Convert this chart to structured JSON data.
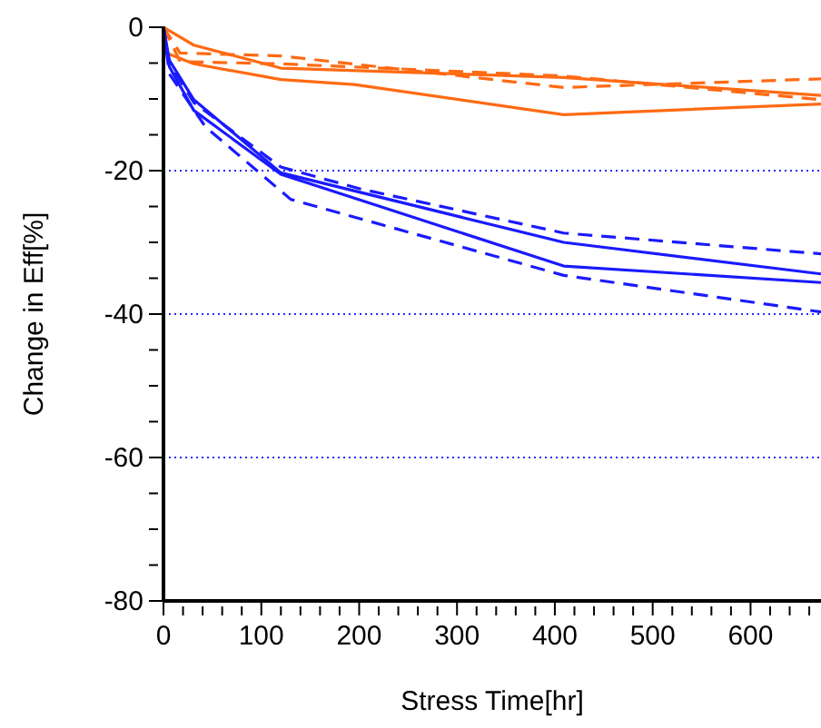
{
  "chart_data": {
    "type": "line",
    "xlabel": "Stress Time[hr]",
    "ylabel": "Change in Eff[%]",
    "xlim": [
      0,
      672
    ],
    "ylim": [
      -80,
      0
    ],
    "xticks": [
      0,
      {
        "value": 20,
        "label": null
      },
      {
        "value": 40,
        "label": null
      },
      {
        "value": 60,
        "label": null
      },
      {
        "value": 80,
        "label": null
      },
      100,
      {
        "value": 120,
        "label": null
      },
      {
        "value": 140,
        "label": null
      },
      {
        "value": 160,
        "label": null
      },
      {
        "value": 180,
        "label": null
      },
      200,
      {
        "value": 220,
        "label": null
      },
      {
        "value": 240,
        "label": null
      },
      {
        "value": 260,
        "label": null
      },
      {
        "value": 280,
        "label": null
      },
      300,
      {
        "value": 320,
        "label": null
      },
      {
        "value": 340,
        "label": null
      },
      {
        "value": 360,
        "label": null
      },
      {
        "value": 380,
        "label": null
      },
      400,
      {
        "value": 420,
        "label": null
      },
      {
        "value": 440,
        "label": null
      },
      {
        "value": 460,
        "label": null
      },
      {
        "value": 480,
        "label": null
      },
      500,
      {
        "value": 520,
        "label": null
      },
      {
        "value": 540,
        "label": null
      },
      {
        "value": 560,
        "label": null
      },
      {
        "value": 580,
        "label": null
      },
      600,
      {
        "value": 620,
        "label": null
      },
      {
        "value": 640,
        "label": null
      },
      {
        "value": 660,
        "label": null
      }
    ],
    "yticks": [
      -80,
      {
        "value": -75,
        "label": null
      },
      {
        "value": -70,
        "label": null
      },
      {
        "value": -65,
        "label": null
      },
      -60,
      {
        "value": -55,
        "label": null
      },
      {
        "value": -50,
        "label": null
      },
      {
        "value": -45,
        "label": null
      },
      -40,
      {
        "value": -35,
        "label": null
      },
      {
        "value": -30,
        "label": null
      },
      {
        "value": -25,
        "label": null
      },
      -20,
      {
        "value": -15,
        "label": null
      },
      {
        "value": -10,
        "label": null
      },
      {
        "value": -5,
        "label": null
      },
      0
    ],
    "grid": "y",
    "marker": "none",
    "series": [
      {
        "color": "#ff6a13",
        "line_style": "solid",
        "x": [
          0,
          31,
          120,
          409,
          672
        ],
        "values": [
          0,
          -2.5,
          -5.7,
          -7.0,
          -9.5
        ]
      },
      {
        "color": "#ff6a13",
        "line_style": "solid",
        "x": [
          0,
          3,
          31,
          120,
          195,
          409,
          672
        ],
        "values": [
          0,
          -3.6,
          -5.1,
          -7.3,
          -8.0,
          -12.2,
          -10.7
        ]
      },
      {
        "color": "#ff6a13",
        "line_style": "dashed",
        "x": [
          0,
          17,
          120,
          409,
          672
        ],
        "values": [
          0,
          -3.6,
          -4.0,
          -8.4,
          -7.2
        ]
      },
      {
        "color": "#ff6a13",
        "line_style": "dashed",
        "x": [
          0,
          17,
          120,
          409,
          672
        ],
        "values": [
          0,
          -4.8,
          -5.1,
          -6.8,
          -10.1
        ]
      },
      {
        "color": "#1a1aff",
        "line_style": "solid",
        "x": [
          0,
          6,
          31,
          120,
          409,
          672
        ],
        "values": [
          0,
          -4.6,
          -10.1,
          -20.3,
          -30.0,
          -34.4
        ]
      },
      {
        "color": "#1a1aff",
        "line_style": "solid",
        "x": [
          0,
          6,
          31,
          120,
          409,
          672
        ],
        "values": [
          0,
          -5.5,
          -11.6,
          -20.5,
          -33.3,
          -35.6
        ]
      },
      {
        "color": "#1a1aff",
        "line_style": "dashed",
        "x": [
          0,
          6,
          31,
          120,
          200,
          409,
          672
        ],
        "values": [
          0,
          -5.0,
          -10.5,
          -19.5,
          -22.5,
          -28.7,
          -31.6
        ]
      },
      {
        "color": "#1a1aff",
        "line_style": "dashed",
        "x": [
          0,
          6,
          43,
          130,
          409,
          672
        ],
        "values": [
          0,
          -6.5,
          -13.9,
          -24.0,
          -34.6,
          -39.7
        ]
      }
    ]
  }
}
